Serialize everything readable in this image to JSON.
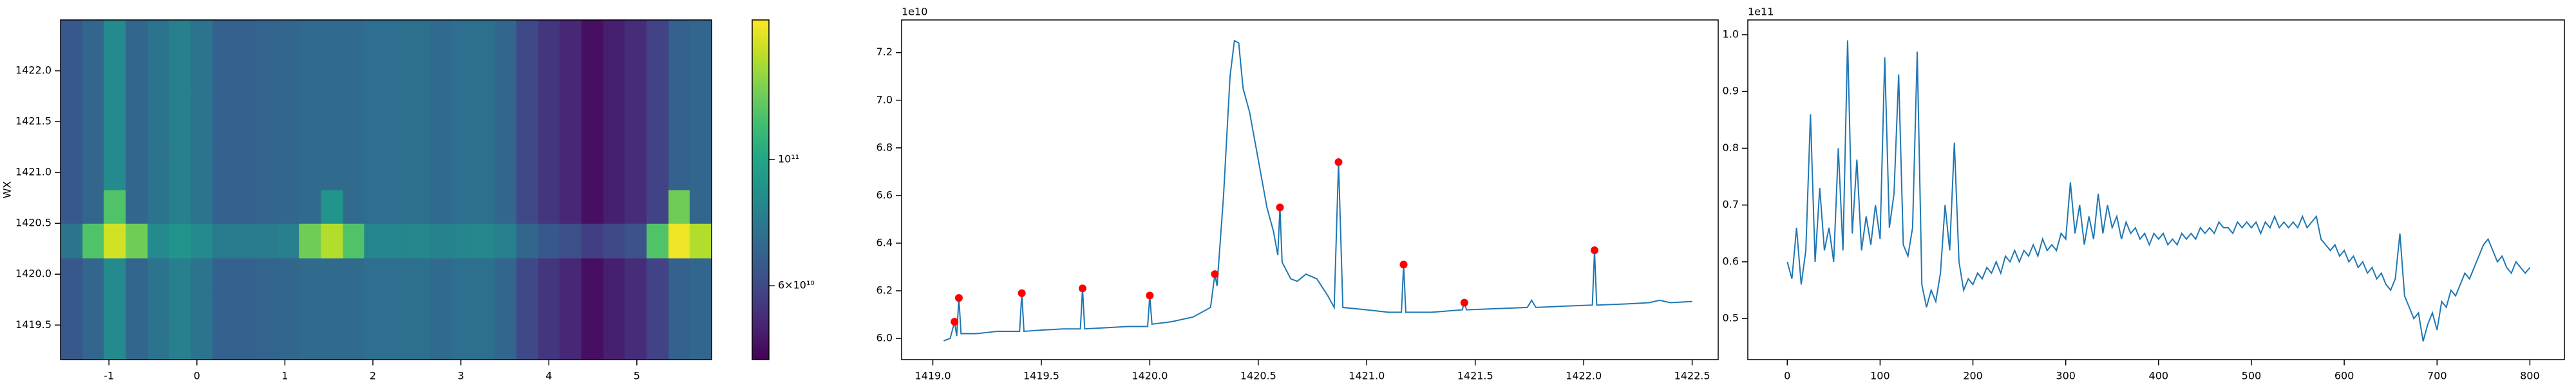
{
  "chart_data": [
    {
      "type": "heatmap",
      "ylabel": "WX",
      "cmap": "viridis",
      "norm": "log",
      "xlim": [
        -1.55,
        5.85
      ],
      "ylim": [
        1419.16,
        1422.5
      ],
      "xticks": [
        -1,
        0,
        1,
        2,
        3,
        4,
        5
      ],
      "yticks": [
        1419.5,
        {
          "value": 1420,
          "label": "1420.0"
        },
        1420.5,
        {
          "value": 1421,
          "label": "1421.0"
        },
        1421.5,
        {
          "value": 1422,
          "label": "1422.0"
        }
      ],
      "x_edges": [
        -1.55,
        -1.3,
        -1.06,
        -0.81,
        -0.56,
        -0.32,
        -0.07,
        0.18,
        0.42,
        0.67,
        0.92,
        1.16,
        1.41,
        1.66,
        1.9,
        2.15,
        2.4,
        2.64,
        2.89,
        3.14,
        3.38,
        3.63,
        3.88,
        4.12,
        4.37,
        4.62,
        4.86,
        5.11,
        5.36,
        5.6,
        5.85
      ],
      "y_edges": [
        1419.16,
        1419.49,
        1419.83,
        1420.16,
        1420.5,
        1420.83,
        1421.16,
        1421.5,
        1421.83,
        1422.17,
        1422.5
      ],
      "z": [
        [
          65000000000.0,
          70000000000.0,
          85000000000.0,
          70000000000.0,
          75000000000.0,
          80000000000.0,
          75000000000.0,
          68000000000.0,
          68000000000.0,
          69000000000.0,
          70000000000.0,
          72000000000.0,
          72000000000.0,
          72000000000.0,
          73000000000.0,
          73000000000.0,
          74000000000.0,
          72000000000.0,
          73000000000.0,
          74000000000.0,
          70000000000.0,
          60000000000.0,
          55000000000.0,
          52000000000.0,
          47000000000.0,
          50000000000.0,
          53000000000.0,
          58000000000.0,
          68000000000.0,
          70000000000.0
        ],
        [
          65000000000.0,
          70000000000.0,
          85000000000.0,
          70000000000.0,
          75000000000.0,
          80000000000.0,
          75000000000.0,
          68000000000.0,
          68000000000.0,
          69000000000.0,
          70000000000.0,
          72000000000.0,
          72000000000.0,
          72000000000.0,
          73000000000.0,
          73000000000.0,
          74000000000.0,
          72000000000.0,
          73000000000.0,
          74000000000.0,
          70000000000.0,
          60000000000.0,
          55000000000.0,
          52000000000.0,
          47000000000.0,
          50000000000.0,
          53000000000.0,
          58000000000.0,
          68000000000.0,
          70000000000.0
        ],
        [
          65000000000.0,
          70000000000.0,
          85000000000.0,
          70000000000.0,
          75000000000.0,
          80000000000.0,
          75000000000.0,
          68000000000.0,
          68000000000.0,
          69000000000.0,
          70000000000.0,
          72000000000.0,
          72000000000.0,
          72000000000.0,
          73000000000.0,
          73000000000.0,
          74000000000.0,
          72000000000.0,
          73000000000.0,
          74000000000.0,
          70000000000.0,
          60000000000.0,
          55000000000.0,
          52000000000.0,
          47000000000.0,
          50000000000.0,
          53000000000.0,
          58000000000.0,
          68000000000.0,
          70000000000.0
        ],
        [
          75000000000.0,
          120000000000.0,
          160000000000.0,
          130000000000.0,
          85000000000.0,
          90000000000.0,
          85000000000.0,
          78000000000.0,
          78000000000.0,
          79000000000.0,
          80000000000.0,
          130000000000.0,
          150000000000.0,
          120000000000.0,
          83000000000.0,
          83000000000.0,
          84000000000.0,
          82000000000.0,
          83000000000.0,
          84000000000.0,
          80000000000.0,
          70000000000.0,
          65000000000.0,
          62000000000.0,
          57000000000.0,
          60000000000.0,
          63000000000.0,
          120000000000.0,
          170000000000.0,
          150000000000.0
        ],
        [
          65000000000.0,
          70000000000.0,
          120000000000.0,
          70000000000.0,
          75000000000.0,
          80000000000.0,
          75000000000.0,
          68000000000.0,
          68000000000.0,
          69000000000.0,
          70000000000.0,
          72000000000.0,
          90000000000.0,
          72000000000.0,
          73000000000.0,
          73000000000.0,
          74000000000.0,
          72000000000.0,
          73000000000.0,
          74000000000.0,
          70000000000.0,
          60000000000.0,
          55000000000.0,
          52000000000.0,
          47000000000.0,
          50000000000.0,
          53000000000.0,
          58000000000.0,
          130000000000.0,
          70000000000.0
        ],
        [
          65000000000.0,
          70000000000.0,
          85000000000.0,
          70000000000.0,
          75000000000.0,
          80000000000.0,
          75000000000.0,
          68000000000.0,
          68000000000.0,
          69000000000.0,
          70000000000.0,
          72000000000.0,
          72000000000.0,
          72000000000.0,
          73000000000.0,
          73000000000.0,
          74000000000.0,
          72000000000.0,
          73000000000.0,
          74000000000.0,
          70000000000.0,
          60000000000.0,
          55000000000.0,
          52000000000.0,
          47000000000.0,
          50000000000.0,
          53000000000.0,
          58000000000.0,
          68000000000.0,
          70000000000.0
        ],
        [
          65000000000.0,
          70000000000.0,
          85000000000.0,
          70000000000.0,
          75000000000.0,
          80000000000.0,
          75000000000.0,
          68000000000.0,
          68000000000.0,
          69000000000.0,
          70000000000.0,
          72000000000.0,
          72000000000.0,
          72000000000.0,
          73000000000.0,
          73000000000.0,
          74000000000.0,
          72000000000.0,
          73000000000.0,
          74000000000.0,
          70000000000.0,
          60000000000.0,
          55000000000.0,
          52000000000.0,
          47000000000.0,
          50000000000.0,
          53000000000.0,
          58000000000.0,
          68000000000.0,
          70000000000.0
        ],
        [
          65000000000.0,
          70000000000.0,
          85000000000.0,
          70000000000.0,
          75000000000.0,
          80000000000.0,
          75000000000.0,
          68000000000.0,
          68000000000.0,
          69000000000.0,
          70000000000.0,
          72000000000.0,
          72000000000.0,
          72000000000.0,
          73000000000.0,
          73000000000.0,
          74000000000.0,
          72000000000.0,
          73000000000.0,
          74000000000.0,
          70000000000.0,
          60000000000.0,
          55000000000.0,
          52000000000.0,
          47000000000.0,
          50000000000.0,
          53000000000.0,
          58000000000.0,
          68000000000.0,
          70000000000.0
        ],
        [
          65000000000.0,
          70000000000.0,
          85000000000.0,
          70000000000.0,
          75000000000.0,
          80000000000.0,
          75000000000.0,
          68000000000.0,
          68000000000.0,
          69000000000.0,
          70000000000.0,
          72000000000.0,
          72000000000.0,
          72000000000.0,
          73000000000.0,
          73000000000.0,
          74000000000.0,
          72000000000.0,
          73000000000.0,
          74000000000.0,
          70000000000.0,
          60000000000.0,
          55000000000.0,
          52000000000.0,
          47000000000.0,
          50000000000.0,
          53000000000.0,
          58000000000.0,
          68000000000.0,
          70000000000.0
        ],
        [
          65000000000.0,
          70000000000.0,
          85000000000.0,
          70000000000.0,
          75000000000.0,
          80000000000.0,
          75000000000.0,
          68000000000.0,
          68000000000.0,
          69000000000.0,
          70000000000.0,
          72000000000.0,
          72000000000.0,
          72000000000.0,
          73000000000.0,
          73000000000.0,
          74000000000.0,
          72000000000.0,
          73000000000.0,
          74000000000.0,
          70000000000.0,
          60000000000.0,
          55000000000.0,
          52000000000.0,
          47000000000.0,
          50000000000.0,
          53000000000.0,
          58000000000.0,
          68000000000.0,
          70000000000.0
        ]
      ],
      "clim": [
        44500000000.0,
        176000000000.0
      ],
      "cticks": [
        {
          "value": 100000000000.0,
          "label": "10¹¹"
        },
        {
          "value": 60000000000.0,
          "label": "6×10¹⁰"
        }
      ]
    },
    {
      "type": "line",
      "offset_text": "1e10",
      "color": "#1f77b4",
      "xlim": [
        1418.856,
        1422.62
      ],
      "ylim": [
        5.911,
        7.337
      ],
      "xticks": [
        {
          "value": 1419,
          "label": "1419.0"
        },
        1419.5,
        {
          "value": 1420,
          "label": "1420.0"
        },
        1420.5,
        {
          "value": 1421,
          "label": "1421.0"
        },
        1421.5,
        {
          "value": 1422,
          "label": "1422.0"
        },
        1422.5
      ],
      "yticks": [
        {
          "value": 6,
          "label": "6.0"
        },
        6.2,
        6.4,
        6.6,
        6.8,
        {
          "value": 7,
          "label": "7.0"
        },
        7.2
      ],
      "x": [
        1419.05,
        1419.08,
        1419.1,
        1419.11,
        1419.12,
        1419.13,
        1419.2,
        1419.3,
        1419.4,
        1419.41,
        1419.42,
        1419.5,
        1419.6,
        1419.68,
        1419.69,
        1419.7,
        1419.8,
        1419.9,
        1419.99,
        1420.0,
        1420.01,
        1420.1,
        1420.2,
        1420.28,
        1420.3,
        1420.31,
        1420.34,
        1420.37,
        1420.39,
        1420.41,
        1420.43,
        1420.46,
        1420.5,
        1420.54,
        1420.57,
        1420.59,
        1420.6,
        1420.61,
        1420.65,
        1420.68,
        1420.72,
        1420.77,
        1420.82,
        1420.85,
        1420.87,
        1420.89,
        1421.0,
        1421.1,
        1421.16,
        1421.17,
        1421.18,
        1421.3,
        1421.44,
        1421.45,
        1421.46,
        1421.6,
        1421.74,
        1421.76,
        1421.78,
        1421.9,
        1422.04,
        1422.05,
        1422.06,
        1422.2,
        1422.3,
        1422.35,
        1422.4,
        1422.5
      ],
      "values": [
        5.99,
        6.0,
        6.07,
        6.01,
        6.17,
        6.02,
        6.02,
        6.03,
        6.03,
        6.19,
        6.03,
        6.035,
        6.04,
        6.04,
        6.21,
        6.04,
        6.045,
        6.05,
        6.05,
        6.18,
        6.06,
        6.07,
        6.09,
        6.13,
        6.27,
        6.22,
        6.6,
        7.1,
        7.25,
        7.24,
        7.05,
        6.95,
        6.75,
        6.55,
        6.45,
        6.35,
        6.55,
        6.32,
        6.25,
        6.24,
        6.27,
        6.25,
        6.18,
        6.13,
        6.74,
        6.13,
        6.12,
        6.11,
        6.11,
        6.31,
        6.11,
        6.11,
        6.12,
        6.15,
        6.12,
        6.125,
        6.13,
        6.16,
        6.13,
        6.135,
        6.14,
        6.37,
        6.14,
        6.145,
        6.15,
        6.16,
        6.15,
        6.155
      ],
      "markers": {
        "color": "red",
        "x": [
          1419.1,
          1419.12,
          1419.41,
          1419.69,
          1420.0,
          1420.3,
          1420.6,
          1420.87,
          1421.17,
          1421.45,
          1422.05
        ],
        "values": [
          6.07,
          6.17,
          6.19,
          6.21,
          6.18,
          6.27,
          6.55,
          6.74,
          6.31,
          6.15,
          6.37
        ]
      }
    },
    {
      "type": "line",
      "offset_text": "1e11",
      "color": "#1f77b4",
      "xlim": [
        -42.5,
        837.2
      ],
      "ylim": [
        0.4277,
        1.026
      ],
      "xticks": [
        0,
        100,
        200,
        300,
        400,
        500,
        600,
        700,
        800
      ],
      "yticks": [
        0.5,
        0.6,
        0.7,
        0.8,
        0.9,
        {
          "value": 1,
          "label": "1.0"
        }
      ],
      "x": [
        0,
        5,
        10,
        15,
        20,
        25,
        30,
        35,
        40,
        45,
        50,
        55,
        60,
        65,
        70,
        75,
        80,
        85,
        90,
        95,
        100,
        105,
        110,
        115,
        120,
        125,
        130,
        135,
        140,
        145,
        150,
        155,
        160,
        165,
        170,
        175,
        180,
        185,
        190,
        195,
        200,
        205,
        210,
        215,
        220,
        225,
        230,
        235,
        240,
        245,
        250,
        255,
        260,
        265,
        270,
        275,
        280,
        285,
        290,
        295,
        300,
        305,
        310,
        315,
        320,
        325,
        330,
        335,
        340,
        345,
        350,
        355,
        360,
        365,
        370,
        375,
        380,
        385,
        390,
        395,
        400,
        405,
        410,
        415,
        420,
        425,
        430,
        435,
        440,
        445,
        450,
        455,
        460,
        465,
        470,
        475,
        480,
        485,
        490,
        495,
        500,
        505,
        510,
        515,
        520,
        525,
        530,
        535,
        540,
        545,
        550,
        555,
        560,
        565,
        570,
        575,
        580,
        585,
        590,
        595,
        600,
        605,
        610,
        615,
        620,
        625,
        630,
        635,
        640,
        645,
        650,
        655,
        660,
        665,
        670,
        675,
        680,
        685,
        690,
        695,
        700,
        705,
        710,
        715,
        720,
        725,
        730,
        735,
        740,
        745,
        750,
        755,
        760,
        765,
        770,
        775,
        780,
        785,
        790,
        795,
        800
      ],
      "values": [
        0.6,
        0.57,
        0.66,
        0.56,
        0.62,
        0.86,
        0.6,
        0.73,
        0.62,
        0.66,
        0.6,
        0.8,
        0.62,
        0.99,
        0.65,
        0.78,
        0.62,
        0.68,
        0.63,
        0.7,
        0.64,
        0.96,
        0.66,
        0.72,
        0.93,
        0.63,
        0.61,
        0.66,
        0.97,
        0.56,
        0.52,
        0.55,
        0.53,
        0.58,
        0.7,
        0.62,
        0.81,
        0.6,
        0.55,
        0.57,
        0.56,
        0.58,
        0.57,
        0.59,
        0.58,
        0.6,
        0.58,
        0.61,
        0.6,
        0.62,
        0.6,
        0.62,
        0.61,
        0.63,
        0.61,
        0.64,
        0.62,
        0.63,
        0.62,
        0.65,
        0.64,
        0.74,
        0.65,
        0.7,
        0.63,
        0.68,
        0.64,
        0.72,
        0.65,
        0.7,
        0.66,
        0.68,
        0.64,
        0.67,
        0.65,
        0.66,
        0.64,
        0.65,
        0.63,
        0.65,
        0.64,
        0.65,
        0.63,
        0.64,
        0.63,
        0.65,
        0.64,
        0.65,
        0.64,
        0.66,
        0.65,
        0.66,
        0.65,
        0.67,
        0.66,
        0.66,
        0.65,
        0.67,
        0.66,
        0.67,
        0.66,
        0.67,
        0.65,
        0.67,
        0.66,
        0.68,
        0.66,
        0.67,
        0.66,
        0.67,
        0.66,
        0.68,
        0.66,
        0.67,
        0.68,
        0.64,
        0.63,
        0.62,
        0.63,
        0.61,
        0.62,
        0.6,
        0.61,
        0.59,
        0.6,
        0.58,
        0.59,
        0.57,
        0.58,
        0.56,
        0.55,
        0.57,
        0.65,
        0.54,
        0.52,
        0.5,
        0.51,
        0.46,
        0.49,
        0.51,
        0.48,
        0.53,
        0.52,
        0.55,
        0.54,
        0.56,
        0.58,
        0.57,
        0.59,
        0.61,
        0.63,
        0.64,
        0.62,
        0.6,
        0.61,
        0.59,
        0.58,
        0.6,
        0.59,
        0.58,
        0.59
      ]
    }
  ]
}
